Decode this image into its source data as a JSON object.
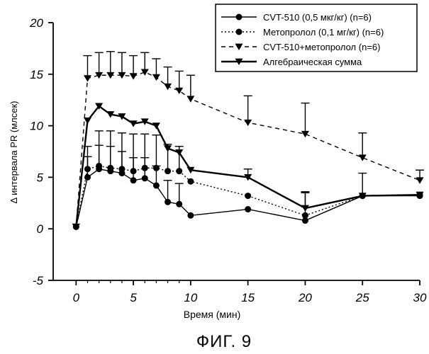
{
  "chart_data": {
    "type": "line",
    "title": "",
    "caption": "ФИГ. 9",
    "xlabel": "Время (мин)",
    "ylabel": "Δ интервала PR (млсек)",
    "xlim": [
      -2,
      30
    ],
    "ylim": [
      -5,
      20
    ],
    "xticks": [
      0,
      5,
      10,
      15,
      20,
      25,
      30
    ],
    "yticks": [
      -5,
      0,
      5,
      10,
      15,
      20
    ],
    "legend_position": "top-right",
    "series": [
      {
        "name": "CVT-510 (0,5 мкг/кг) (n=6)",
        "line": "solid",
        "marker": "circle",
        "x": [
          0,
          1,
          2,
          3,
          4,
          5,
          6,
          7,
          8,
          9,
          10,
          15,
          20,
          25,
          30
        ],
        "y": [
          0.2,
          5.0,
          5.8,
          5.6,
          5.4,
          4.7,
          4.9,
          4.2,
          2.6,
          2.4,
          1.3,
          1.9,
          0.8,
          3.2,
          3.2
        ],
        "error": [
          0,
          2.0,
          2.3,
          2.4,
          2.1,
          2.2,
          2.0,
          1.9,
          2.1,
          2.0,
          0,
          0,
          0,
          0,
          0
        ]
      },
      {
        "name": "Метопролол (0,1 мг/кг) (n=6)",
        "line": "dotted",
        "marker": "circle",
        "x": [
          0,
          1,
          2,
          3,
          4,
          5,
          6,
          7,
          8,
          9,
          10,
          15,
          20,
          25,
          30
        ],
        "y": [
          0.2,
          5.8,
          6.1,
          5.9,
          5.8,
          5.6,
          5.9,
          5.9,
          5.6,
          5.6,
          4.6,
          3.2,
          1.3,
          3.2,
          3.3
        ],
        "error": [
          0,
          2.2,
          3.4,
          3.6,
          3.5,
          3.6,
          3.3,
          3.2,
          2.6,
          2.4,
          0,
          0,
          2.3,
          0,
          0
        ]
      },
      {
        "name": "CVT-510+метопролол (n=6)",
        "line": "dashed",
        "marker": "triangle-down",
        "x": [
          0,
          1,
          2,
          3,
          4,
          5,
          6,
          7,
          8,
          9,
          10,
          15,
          20,
          25,
          30
        ],
        "y": [
          0.2,
          14.6,
          14.9,
          14.9,
          14.9,
          14.8,
          15.2,
          14.7,
          13.8,
          13.4,
          12.6,
          10.3,
          9.2,
          6.9,
          4.7
        ],
        "error": [
          0,
          2.2,
          2.2,
          2.3,
          2.2,
          2.0,
          1.9,
          1.8,
          1.9,
          1.9,
          2.3,
          2.6,
          3.0,
          2.4,
          1.0
        ]
      },
      {
        "name": "Алгебраическая сумма",
        "line": "solid-thick",
        "marker": "triangle-down",
        "x": [
          0,
          1,
          2,
          3,
          4,
          5,
          6,
          7,
          8,
          9,
          10,
          15,
          20,
          25,
          30
        ],
        "y": [
          0.2,
          10.5,
          11.9,
          11.1,
          10.9,
          10.2,
          10.4,
          10.0,
          7.8,
          7.4,
          5.7,
          5.0,
          2.0,
          3.2,
          3.3
        ],
        "error": [
          0,
          0,
          0,
          0,
          0,
          0,
          0,
          0,
          0,
          0,
          0,
          0.8,
          1.5,
          2.2,
          0
        ]
      }
    ]
  }
}
